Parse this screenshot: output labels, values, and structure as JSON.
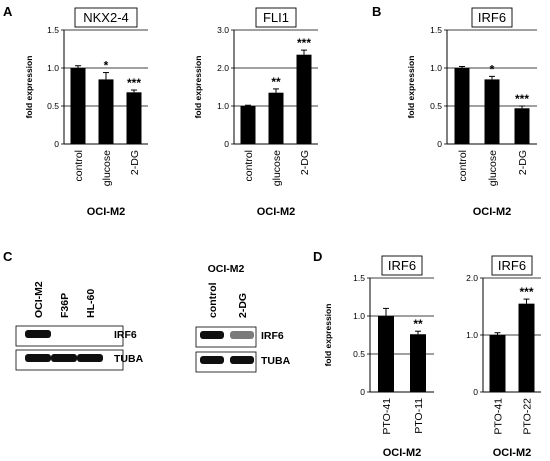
{
  "panel_letters": [
    "A",
    "B",
    "C",
    "D"
  ],
  "chart_data": [
    {
      "type": "bar",
      "panel": "A",
      "title": "NKX2-4",
      "categories": [
        "control",
        "glucose",
        "2-DG"
      ],
      "values": [
        1.0,
        0.85,
        0.68
      ],
      "errors": [
        0.03,
        0.09,
        0.03
      ],
      "significance": [
        "",
        "*",
        "***"
      ],
      "ylabel": "fold expression",
      "xlabel": "OCI-M2",
      "yticks": [
        "0",
        "0.5",
        "1.0",
        "1.5"
      ],
      "ytick_values": [
        0,
        0.5,
        1.0,
        1.5
      ],
      "ylim": [
        0,
        1.5
      ],
      "grid": "horizontal gridlines at 0.5, 1.0, 1.5"
    },
    {
      "type": "bar",
      "panel": "A",
      "title": "FLI1",
      "categories": [
        "control",
        "glucose",
        "2-DG"
      ],
      "values": [
        1.0,
        1.35,
        2.35
      ],
      "errors": [
        0.02,
        0.1,
        0.12
      ],
      "significance": [
        "",
        "**",
        "***"
      ],
      "ylabel": "fold expression",
      "xlabel": "OCI-M2",
      "yticks": [
        "0",
        "1.0",
        "2.0",
        "3.0"
      ],
      "ytick_values": [
        0,
        1.0,
        2.0,
        3.0
      ],
      "ylim": [
        0,
        3.0
      ],
      "grid": "horizontal gridlines at 1.0, 2.0, 3.0"
    },
    {
      "type": "bar",
      "panel": "B",
      "title": "IRF6",
      "categories": [
        "control",
        "glucose",
        "2-DG"
      ],
      "values": [
        1.0,
        0.85,
        0.47
      ],
      "errors": [
        0.02,
        0.04,
        0.03
      ],
      "significance": [
        "",
        "*",
        "***"
      ],
      "ylabel": "fold expression",
      "xlabel": "OCI-M2",
      "yticks": [
        "0",
        "0.5",
        "1.0",
        "1.5"
      ],
      "ytick_values": [
        0,
        0.5,
        1.0,
        1.5
      ],
      "ylim": [
        0,
        1.5
      ],
      "grid": "horizontal gridlines at 0.5, 1.0, 1.5"
    },
    {
      "type": "bar",
      "panel": "D",
      "title": "IRF6",
      "categories": [
        "PTO-41",
        "PTO-11"
      ],
      "values": [
        1.0,
        0.76
      ],
      "errors": [
        0.1,
        0.04
      ],
      "significance": [
        "",
        "**"
      ],
      "ylabel": "fold expression",
      "xlabel": "OCI-M2",
      "yticks": [
        "0",
        "0.5",
        "1.0",
        "1.5"
      ],
      "ytick_values": [
        0,
        0.5,
        1.0,
        1.5
      ],
      "ylim": [
        0,
        1.5
      ],
      "grid": "horizontal gridlines at 0.5, 1.0, 1.5"
    },
    {
      "type": "bar",
      "panel": "D",
      "title": "IRF6",
      "categories": [
        "PTO-41",
        "PTO-22"
      ],
      "values": [
        1.0,
        1.55
      ],
      "errors": [
        0.04,
        0.08
      ],
      "significance": [
        "",
        "***"
      ],
      "ylabel": "",
      "xlabel": "OCI-M2",
      "yticks": [
        "0",
        "1.0",
        "2.0"
      ],
      "ytick_values": [
        0,
        1.0,
        2.0
      ],
      "ylim": [
        0,
        2.0
      ],
      "grid": "horizontal gridlines at 1.0, 2.0"
    }
  ],
  "western_blots": [
    {
      "panel": "C",
      "header": "",
      "lanes": [
        "OCI-M2",
        "F36P",
        "HL-60"
      ],
      "rows": [
        {
          "label": "IRF6",
          "intensities": [
            1.0,
            0.0,
            0.0
          ]
        },
        {
          "label": "TUBA",
          "intensities": [
            1.0,
            1.0,
            1.0
          ]
        }
      ]
    },
    {
      "panel": "C",
      "header": "OCI-M2",
      "lanes": [
        "control",
        "2-DG"
      ],
      "rows": [
        {
          "label": "IRF6",
          "intensities": [
            1.0,
            0.55
          ]
        },
        {
          "label": "TUBA",
          "intensities": [
            1.0,
            1.0
          ]
        }
      ]
    }
  ]
}
